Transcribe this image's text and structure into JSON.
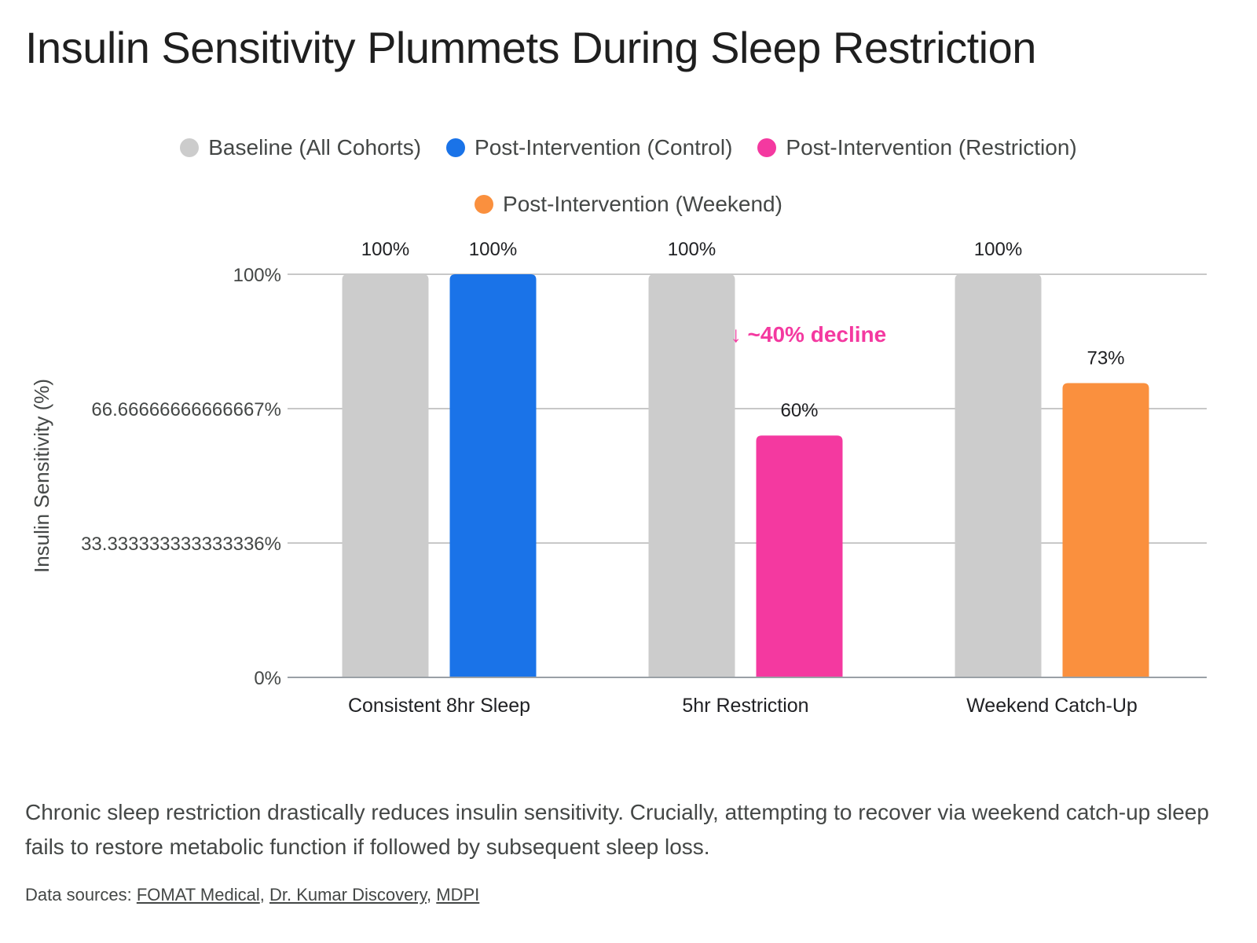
{
  "title": "Insulin Sensitivity Plummets During Sleep Restriction",
  "legend": [
    {
      "label": "Baseline (All Cohorts)",
      "color": "#cccccc"
    },
    {
      "label": "Post-Intervention (Control)",
      "color": "#1a73e8"
    },
    {
      "label": "Post-Intervention (Restriction)",
      "color": "#f439a0"
    },
    {
      "label": "Post-Intervention (Weekend)",
      "color": "#fa903e"
    }
  ],
  "chart_data": {
    "type": "bar",
    "title": "Insulin Sensitivity Plummets During Sleep Restriction",
    "xlabel": "",
    "ylabel": "Insulin Sensitivity (%)",
    "ylim": [
      0,
      100
    ],
    "yticks": [
      0,
      33.333333333333336,
      66.66666666666667,
      100
    ],
    "ytick_labels": [
      "0%",
      "33.333333333333336%",
      "66.66666666666667%",
      "100%"
    ],
    "grid": true,
    "legend_position": "top",
    "categories": [
      "Consistent 8hr Sleep",
      "5hr Restriction",
      "Weekend Catch-Up"
    ],
    "groups": [
      {
        "category": "Consistent 8hr Sleep",
        "bars": [
          {
            "series": "Baseline (All Cohorts)",
            "value": 100,
            "label": "100%",
            "color": "#cccccc"
          },
          {
            "series": "Post-Intervention (Control)",
            "value": 100,
            "label": "100%",
            "color": "#1a73e8"
          }
        ]
      },
      {
        "category": "5hr Restriction",
        "bars": [
          {
            "series": "Baseline (All Cohorts)",
            "value": 100,
            "label": "100%",
            "color": "#cccccc"
          },
          {
            "series": "Post-Intervention (Restriction)",
            "value": 60,
            "label": "60%",
            "color": "#f439a0"
          }
        ]
      },
      {
        "category": "Weekend Catch-Up",
        "bars": [
          {
            "series": "Baseline (All Cohorts)",
            "value": 100,
            "label": "100%",
            "color": "#cccccc"
          },
          {
            "series": "Post-Intervention (Weekend)",
            "value": 73,
            "label": "73%",
            "color": "#fa903e"
          }
        ]
      }
    ],
    "annotations": [
      {
        "text": "↓ ~40% decline",
        "category": "5hr Restriction",
        "value": 85,
        "color": "#f439a0"
      }
    ]
  },
  "caption": "Chronic sleep restriction drastically reduces insulin sensitivity. Crucially, attempting to recover via weekend catch-up sleep fails to restore metabolic function if followed by subsequent sleep loss.",
  "sources": {
    "prefix": "Data sources: ",
    "links": [
      "FOMAT Medical",
      "Dr. Kumar Discovery",
      "MDPI"
    ],
    "separator": ", "
  }
}
